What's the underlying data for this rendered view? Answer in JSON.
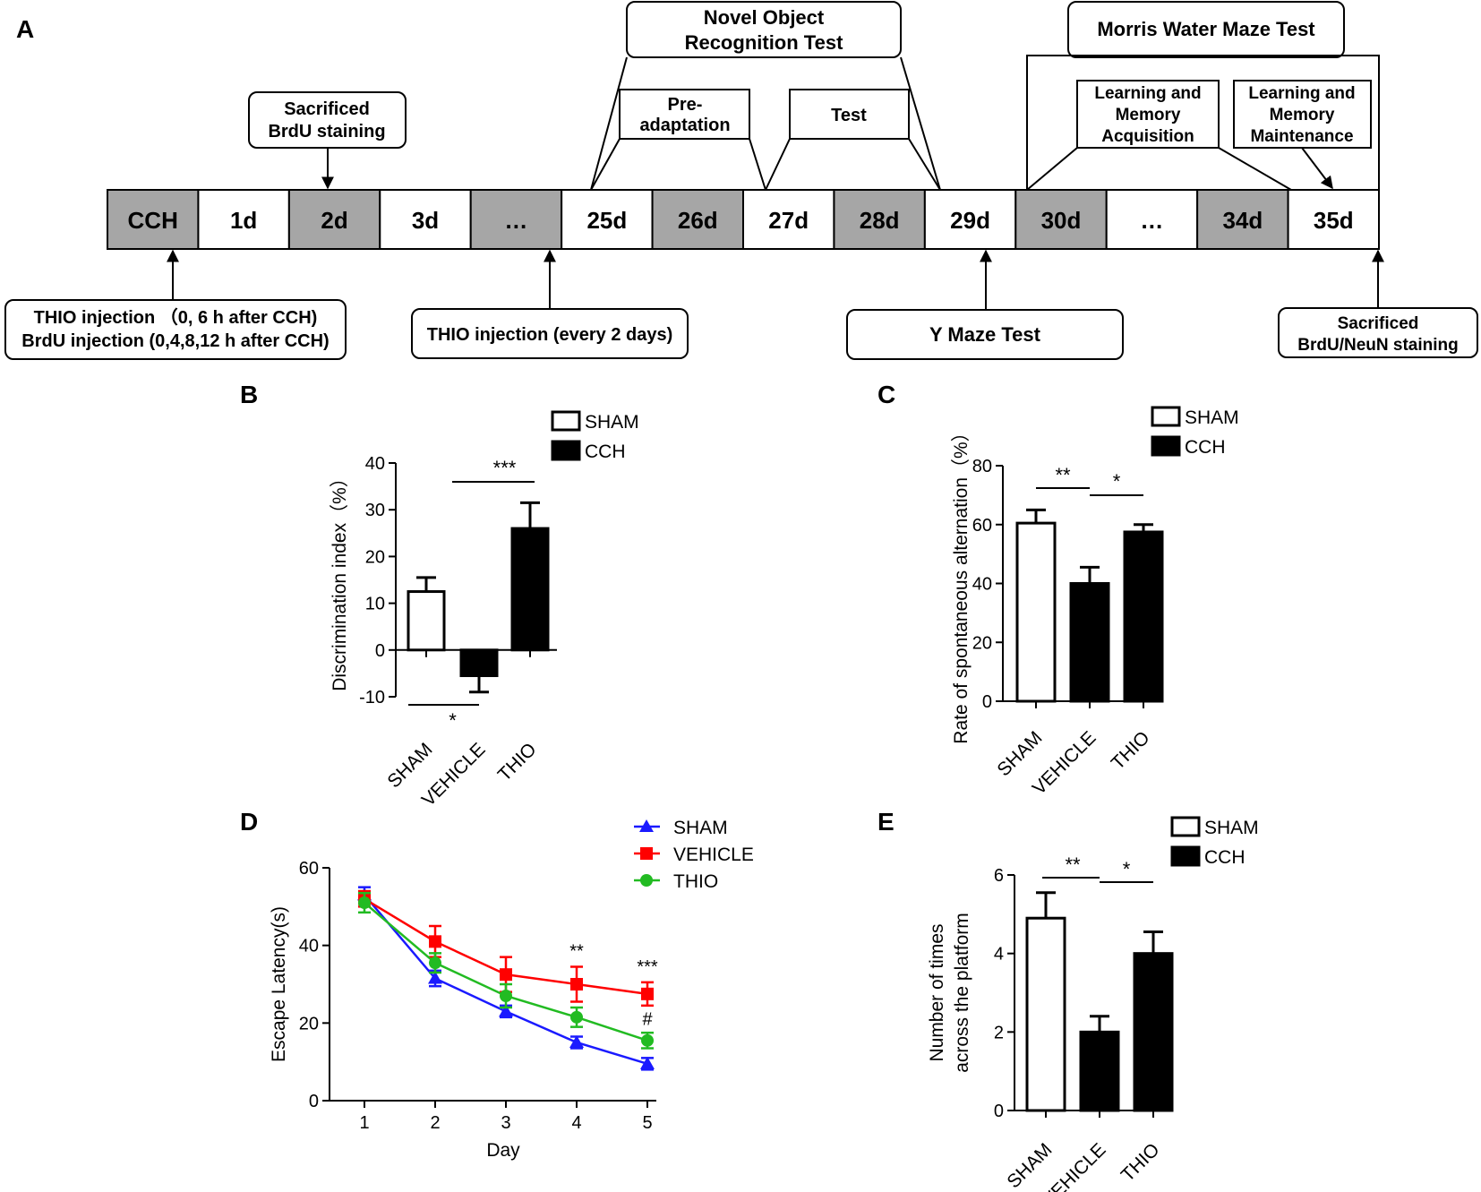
{
  "panels": {
    "a": "A",
    "b": "B",
    "c": "C",
    "d": "D",
    "e": "E"
  },
  "timeline": {
    "cells": [
      {
        "label": "CCH",
        "shaded": true
      },
      {
        "label": "1d",
        "shaded": false
      },
      {
        "label": "2d",
        "shaded": true
      },
      {
        "label": "3d",
        "shaded": false
      },
      {
        "label": "…",
        "shaded": true
      },
      {
        "label": "25d",
        "shaded": false
      },
      {
        "label": "26d",
        "shaded": true
      },
      {
        "label": "27d",
        "shaded": false
      },
      {
        "label": "28d",
        "shaded": true
      },
      {
        "label": "29d",
        "shaded": false
      },
      {
        "label": "30d",
        "shaded": true
      },
      {
        "label": "…",
        "shaded": false
      },
      {
        "label": "34d",
        "shaded": true
      },
      {
        "label": "35d",
        "shaded": false
      }
    ],
    "shade_color": "#a6a6a6",
    "top_boxes": {
      "sacrificed_brdu": [
        "Sacrificed",
        "BrdU staining"
      ],
      "nor_title": [
        "Novel Object",
        "Recognition Test"
      ],
      "preadaptation": [
        "Pre-",
        "adaptation"
      ],
      "test": [
        "Test"
      ],
      "mwm_title": [
        "Morris Water Maze Test"
      ],
      "acquisition": [
        "Learning and",
        "Memory",
        "Acquisition"
      ],
      "maintenance": [
        "Learning and",
        "Memory",
        "Maintenance"
      ]
    },
    "bottom_boxes": {
      "thio_initial": [
        "THIO injection （0, 6 h after CCH)",
        "BrdU injection (0,4,8,12 h after CCH)"
      ],
      "thio_every": [
        "THIO injection (every 2 days)"
      ],
      "ymaze": [
        "Y Maze Test"
      ],
      "sacrificed_neun": [
        "Sacrificed",
        "BrdU/NeuN staining"
      ]
    }
  },
  "chart_data": [
    {
      "id": "B",
      "type": "bar",
      "categories": [
        "SHAM",
        "VEHICLE",
        "THIO"
      ],
      "values": [
        12.5,
        -5.5,
        26
      ],
      "errors": [
        3,
        3.5,
        5.5
      ],
      "fills": [
        "#ffffff",
        "#000000",
        "#000000"
      ],
      "ylabel": "Discrimination index（%）",
      "ylim": [
        -10,
        40
      ],
      "yticks": [
        -10,
        0,
        10,
        20,
        30,
        40
      ],
      "legend": [
        {
          "label": "SHAM",
          "fill": "#ffffff"
        },
        {
          "label": "CCH",
          "fill": "#000000"
        }
      ],
      "significance": [
        {
          "between": [
            1,
            2
          ],
          "label": "***",
          "position": "top"
        },
        {
          "between": [
            0,
            1
          ],
          "label": "*",
          "position": "bottom"
        }
      ]
    },
    {
      "id": "C",
      "type": "bar",
      "categories": [
        "SHAM",
        "VEHICLE",
        "THIO"
      ],
      "values": [
        60.5,
        40,
        57.5
      ],
      "errors": [
        4.5,
        5.5,
        2.5
      ],
      "fills": [
        "#ffffff",
        "#000000",
        "#000000"
      ],
      "ylabel": "Rate of spontaneous alternation（%）",
      "ylim": [
        0,
        80
      ],
      "yticks": [
        0,
        20,
        40,
        60,
        80
      ],
      "legend": [
        {
          "label": "SHAM",
          "fill": "#ffffff"
        },
        {
          "label": "CCH",
          "fill": "#000000"
        }
      ],
      "significance": [
        {
          "between": [
            0,
            1
          ],
          "label": "**",
          "position": "top"
        },
        {
          "between": [
            1,
            2
          ],
          "label": "*",
          "position": "top"
        }
      ]
    },
    {
      "id": "D",
      "type": "line",
      "x": [
        1,
        2,
        3,
        4,
        5
      ],
      "xlabel": "Day",
      "ylabel": "Escape Latency(s)",
      "ylim": [
        0,
        60
      ],
      "yticks": [
        0,
        20,
        40,
        60
      ],
      "series": [
        {
          "name": "SHAM",
          "color": "#1a1aff",
          "marker": "triangle",
          "values": [
            53,
            31.5,
            23,
            15,
            9.5
          ],
          "errors": [
            2,
            2,
            1.5,
            1.5,
            1.5
          ]
        },
        {
          "name": "VEHICLE",
          "color": "#ff0000",
          "marker": "square",
          "values": [
            52,
            41,
            32.5,
            30,
            27.5
          ],
          "errors": [
            2,
            4,
            4.5,
            4.5,
            3
          ]
        },
        {
          "name": "THIO",
          "color": "#22bb22",
          "marker": "circle",
          "values": [
            51,
            35.5,
            27,
            21.5,
            15.5
          ],
          "errors": [
            2.5,
            2.5,
            3,
            2.5,
            2
          ]
        }
      ],
      "annotations": [
        {
          "x": 4,
          "y": 37,
          "label": "**"
        },
        {
          "x": 5,
          "y": 33,
          "label": "***"
        },
        {
          "x": 5,
          "y": 19.5,
          "label": "#"
        }
      ]
    },
    {
      "id": "E",
      "type": "bar",
      "categories": [
        "SHAM",
        "VEHICLE",
        "THIO"
      ],
      "values": [
        4.9,
        2,
        4
      ],
      "errors": [
        0.65,
        0.4,
        0.55
      ],
      "fills": [
        "#ffffff",
        "#000000",
        "#000000"
      ],
      "ylabel": [
        "Number of times",
        "across the platform"
      ],
      "ylim": [
        0,
        6
      ],
      "yticks": [
        0,
        2,
        4,
        6
      ],
      "legend": [
        {
          "label": "SHAM",
          "fill": "#ffffff"
        },
        {
          "label": "CCH",
          "fill": "#000000"
        }
      ],
      "significance": [
        {
          "between": [
            0,
            1
          ],
          "label": "**",
          "position": "top"
        },
        {
          "between": [
            1,
            2
          ],
          "label": "*",
          "position": "top"
        }
      ]
    }
  ]
}
